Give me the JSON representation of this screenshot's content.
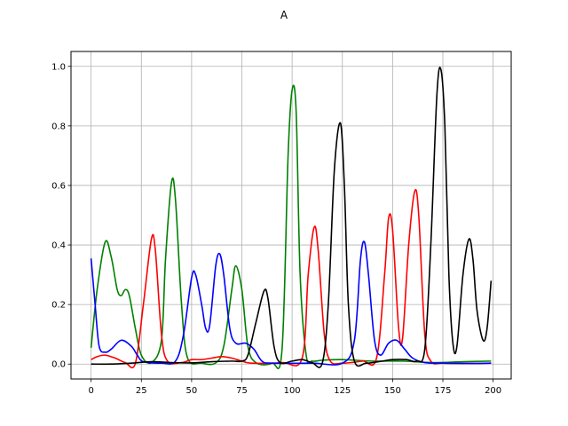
{
  "chart_data": {
    "type": "line",
    "title": "A",
    "xlabel": "",
    "ylabel": "",
    "xlim": [
      -10,
      209
    ],
    "ylim": [
      -0.05,
      1.05
    ],
    "xticks": [
      0,
      25,
      50,
      75,
      100,
      125,
      150,
      175,
      200
    ],
    "yticks": [
      0.0,
      0.2,
      0.4,
      0.6,
      0.8,
      1.0
    ],
    "xtick_labels": [
      "0",
      "25",
      "50",
      "75",
      "100",
      "125",
      "150",
      "175",
      "200"
    ],
    "ytick_labels": [
      "0.0",
      "0.2",
      "0.4",
      "0.6",
      "0.8",
      "1.0"
    ],
    "grid": true,
    "legend": "none",
    "series": [
      {
        "color": "#008000",
        "points": [
          [
            0,
            0.055
          ],
          [
            3,
            0.25
          ],
          [
            7,
            0.41
          ],
          [
            10,
            0.36
          ],
          [
            13,
            0.25
          ],
          [
            15,
            0.23
          ],
          [
            17,
            0.25
          ],
          [
            19,
            0.23
          ],
          [
            22,
            0.12
          ],
          [
            25,
            0.03
          ],
          [
            30,
            0.005
          ],
          [
            35,
            0.08
          ],
          [
            37,
            0.35
          ],
          [
            40,
            0.61
          ],
          [
            42,
            0.55
          ],
          [
            45,
            0.2
          ],
          [
            48,
            0.02
          ],
          [
            55,
            0.003
          ],
          [
            62,
            0.004
          ],
          [
            66,
            0.06
          ],
          [
            70,
            0.25
          ],
          [
            72,
            0.33
          ],
          [
            75,
            0.25
          ],
          [
            78,
            0.06
          ],
          [
            82,
            0.005
          ],
          [
            90,
            0.003
          ],
          [
            95,
            0.05
          ],
          [
            98,
            0.7
          ],
          [
            100,
            0.92
          ],
          [
            102,
            0.85
          ],
          [
            104,
            0.3
          ],
          [
            107,
            0.03
          ],
          [
            110,
            0.01
          ],
          [
            115,
            0.013
          ],
          [
            125,
            0.015
          ],
          [
            140,
            0.01
          ],
          [
            155,
            0.01
          ],
          [
            170,
            0.005
          ],
          [
            185,
            0.008
          ],
          [
            199,
            0.01
          ]
        ]
      },
      {
        "color": "#ff0000",
        "points": [
          [
            0,
            0.015
          ],
          [
            3,
            0.025
          ],
          [
            7,
            0.03
          ],
          [
            12,
            0.02
          ],
          [
            17,
            0.005
          ],
          [
            22,
            0.002
          ],
          [
            26,
            0.2
          ],
          [
            30,
            0.42
          ],
          [
            32,
            0.38
          ],
          [
            35,
            0.1
          ],
          [
            38,
            0.01
          ],
          [
            45,
            0.005
          ],
          [
            50,
            0.015
          ],
          [
            55,
            0.015
          ],
          [
            60,
            0.02
          ],
          [
            65,
            0.025
          ],
          [
            70,
            0.02
          ],
          [
            75,
            0.01
          ],
          [
            80,
            0.003
          ],
          [
            95,
            0.005
          ],
          [
            105,
            0.02
          ],
          [
            108,
            0.3
          ],
          [
            111,
            0.46
          ],
          [
            113,
            0.38
          ],
          [
            116,
            0.1
          ],
          [
            119,
            0.01
          ],
          [
            125,
            0.003
          ],
          [
            135,
            0.01
          ],
          [
            142,
            0.02
          ],
          [
            146,
            0.3
          ],
          [
            148,
            0.49
          ],
          [
            150,
            0.45
          ],
          [
            153,
            0.12
          ],
          [
            155,
            0.09
          ],
          [
            158,
            0.4
          ],
          [
            161,
            0.58
          ],
          [
            163,
            0.5
          ],
          [
            166,
            0.1
          ],
          [
            169,
            0.01
          ],
          [
            175,
            0.003
          ],
          [
            185,
            0.002
          ],
          [
            199,
            0.003
          ]
        ]
      },
      {
        "color": "#0000ff",
        "points": [
          [
            0,
            0.355
          ],
          [
            2,
            0.2
          ],
          [
            4,
            0.06
          ],
          [
            7,
            0.04
          ],
          [
            10,
            0.05
          ],
          [
            15,
            0.08
          ],
          [
            20,
            0.06
          ],
          [
            23,
            0.03
          ],
          [
            26,
            0.008
          ],
          [
            35,
            0.003
          ],
          [
            42,
            0.01
          ],
          [
            46,
            0.1
          ],
          [
            50,
            0.29
          ],
          [
            52,
            0.3
          ],
          [
            55,
            0.2
          ],
          [
            57,
            0.12
          ],
          [
            59,
            0.13
          ],
          [
            62,
            0.33
          ],
          [
            64,
            0.37
          ],
          [
            66,
            0.3
          ],
          [
            69,
            0.12
          ],
          [
            72,
            0.07
          ],
          [
            77,
            0.07
          ],
          [
            81,
            0.05
          ],
          [
            85,
            0.01
          ],
          [
            90,
            0.003
          ],
          [
            110,
            0.003
          ],
          [
            125,
            0.003
          ],
          [
            131,
            0.08
          ],
          [
            134,
            0.35
          ],
          [
            136,
            0.41
          ],
          [
            138,
            0.3
          ],
          [
            141,
            0.08
          ],
          [
            144,
            0.03
          ],
          [
            148,
            0.07
          ],
          [
            152,
            0.08
          ],
          [
            156,
            0.05
          ],
          [
            160,
            0.02
          ],
          [
            166,
            0.005
          ],
          [
            175,
            0.003
          ],
          [
            190,
            0.002
          ],
          [
            199,
            0.003
          ]
        ]
      },
      {
        "color": "#000000",
        "points": [
          [
            0,
            0.0
          ],
          [
            10,
            0.0
          ],
          [
            20,
            0.003
          ],
          [
            30,
            0.008
          ],
          [
            40,
            0.005
          ],
          [
            50,
            0.004
          ],
          [
            60,
            0.008
          ],
          [
            70,
            0.01
          ],
          [
            75,
            0.01
          ],
          [
            78,
            0.03
          ],
          [
            82,
            0.14
          ],
          [
            86,
            0.245
          ],
          [
            88,
            0.22
          ],
          [
            91,
            0.06
          ],
          [
            94,
            0.005
          ],
          [
            100,
            0.01
          ],
          [
            105,
            0.015
          ],
          [
            110,
            0.005
          ],
          [
            115,
            0.003
          ],
          [
            118,
            0.2
          ],
          [
            121,
            0.65
          ],
          [
            124,
            0.81
          ],
          [
            126,
            0.6
          ],
          [
            128,
            0.2
          ],
          [
            131,
            0.01
          ],
          [
            137,
            0.003
          ],
          [
            145,
            0.01
          ],
          [
            150,
            0.015
          ],
          [
            157,
            0.015
          ],
          [
            162,
            0.01
          ],
          [
            166,
            0.05
          ],
          [
            169,
            0.4
          ],
          [
            172,
            0.9
          ],
          [
            174,
            0.99
          ],
          [
            176,
            0.8
          ],
          [
            178,
            0.3
          ],
          [
            180,
            0.07
          ],
          [
            182,
            0.06
          ],
          [
            185,
            0.3
          ],
          [
            188,
            0.42
          ],
          [
            190,
            0.35
          ],
          [
            192,
            0.18
          ],
          [
            195,
            0.08
          ],
          [
            197,
            0.12
          ],
          [
            199,
            0.28
          ]
        ]
      }
    ]
  }
}
